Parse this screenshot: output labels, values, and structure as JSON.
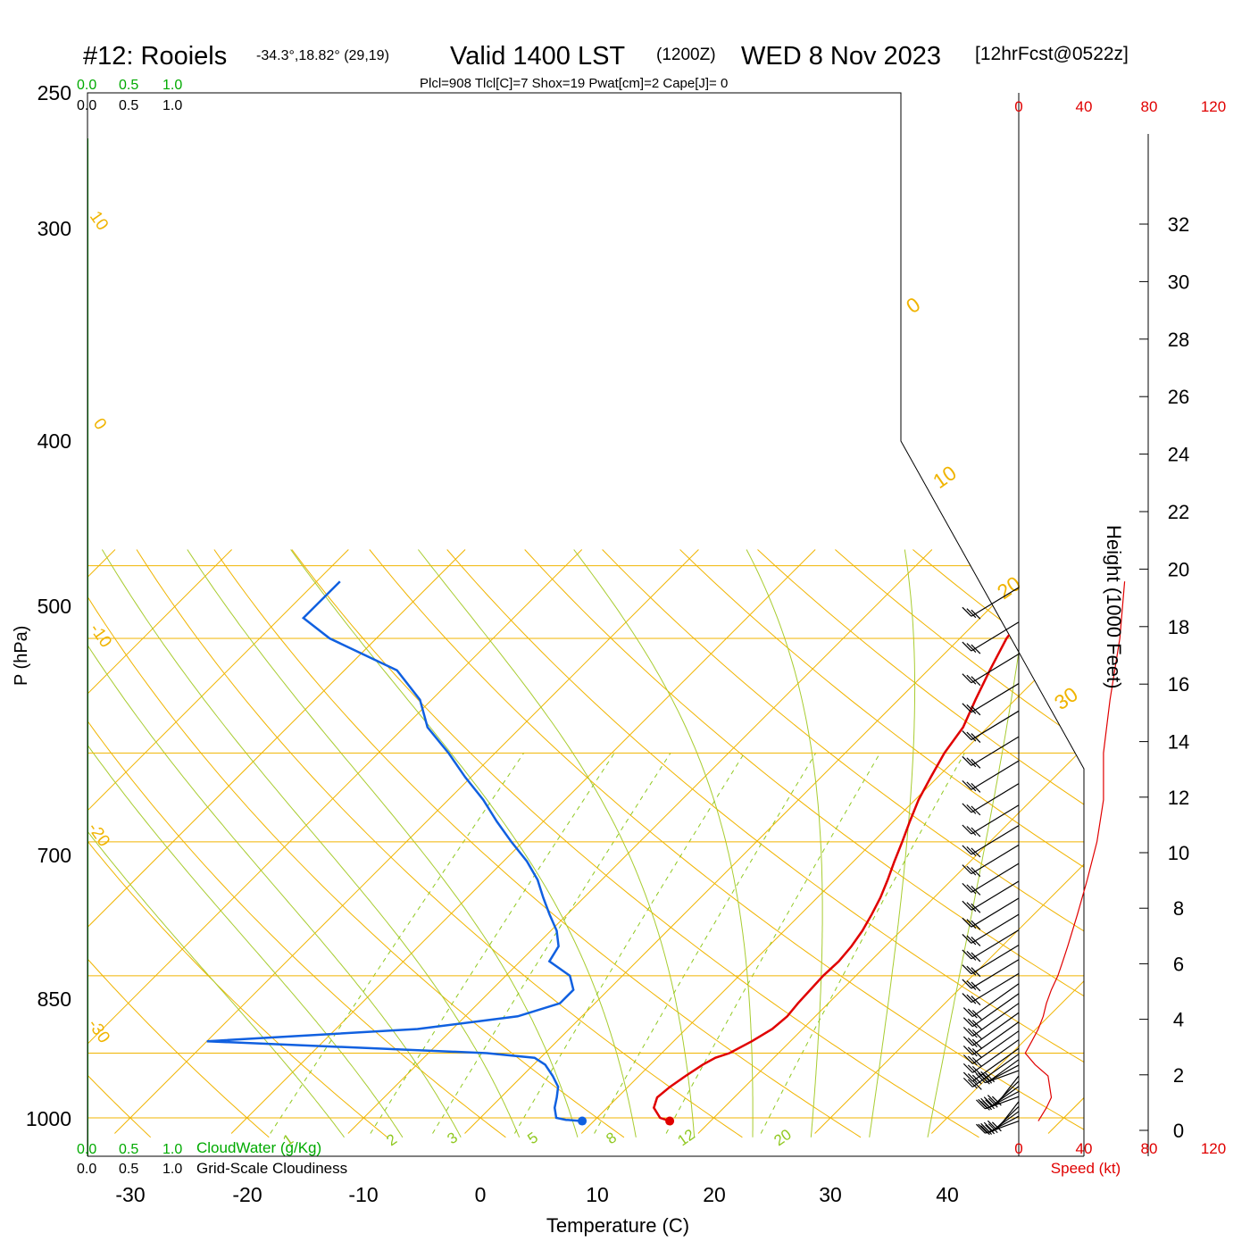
{
  "header": {
    "station": "#12: Rooiels",
    "coords": "-34.3°,18.82° (29,19)",
    "valid": "Valid 1400 LST",
    "zulu": "(1200Z)",
    "date": "WED 8 Nov 2023",
    "forecast": "[12hrFcst@0522z]",
    "indices": "Plcl=908 Tlcl[C]=7 Shox=19 Pwat[cm]=2 Cape[J]= 0"
  },
  "scales": {
    "cloud_top": [
      "0.0",
      "0.5",
      "1.0"
    ],
    "cloud_top2": [
      "0.0",
      "0.5",
      "1.0"
    ],
    "cloud_bottom": [
      "0.0",
      "0.5",
      "1.0"
    ],
    "cloud_bottom2": [
      "0.0",
      "0.5",
      "1.0"
    ],
    "cloudwater_label": "CloudWater (g/Kg)",
    "cloudiness_label": "Grid-Scale Cloudiness",
    "speed_top": [
      "0",
      "40",
      "80",
      "120"
    ],
    "speed_bottom": [
      "0",
      "40",
      "80",
      "120"
    ],
    "speed_label": "Speed (kt)",
    "height_label": "Height (1000 Feet)",
    "height_ticks": [
      "0",
      "2",
      "4",
      "6",
      "8",
      "10",
      "12",
      "14",
      "16",
      "18",
      "20",
      "22",
      "24",
      "26",
      "28",
      "30",
      "32"
    ]
  },
  "colors": {
    "temperature": "#e00000",
    "dewpoint": "#1060e0",
    "isotherm": "#f0b400",
    "adiabat": "#a8cc30",
    "mixing_ratio": "#90c820",
    "cloud_axis": "#00aa00",
    "indices": "#a0004a",
    "speed": "#e00000"
  },
  "chart_data": {
    "type": "line",
    "title": "#12: Rooiels Valid 1400 LST (1200Z) WED 8 Nov 2023",
    "xlabel": "Temperature (C)",
    "ylabel": "P (hPa)",
    "y_scale": "log, inverted",
    "xlim": [
      -35,
      45
    ],
    "ylim": [
      1040,
      250
    ],
    "x_ticks": [
      "-30",
      "-20",
      "-10",
      "0",
      "10",
      "20",
      "30",
      "40"
    ],
    "y_ticks": [
      "250",
      "300",
      "400",
      "500",
      "700",
      "850",
      "1000"
    ],
    "isotherm_labels": [
      "10",
      "0",
      "-10",
      "-20",
      "-30",
      "0",
      "10",
      "20",
      "30"
    ],
    "mixing_ratio_labels": [
      "1",
      "2",
      "3",
      "5",
      "8",
      "12",
      "20"
    ],
    "series": [
      {
        "name": "Temperature",
        "points": [
          [
            1008,
            16.5
          ],
          [
            1000,
            15.4
          ],
          [
            975,
            14.0
          ],
          [
            950,
            13.4
          ],
          [
            925,
            13.6
          ],
          [
            900,
            14.0
          ],
          [
            875,
            14.5
          ],
          [
            860,
            15.0
          ],
          [
            850,
            15.8
          ],
          [
            825,
            16.7
          ],
          [
            800,
            17.4
          ],
          [
            775,
            17.6
          ],
          [
            750,
            17.4
          ],
          [
            725,
            17.3
          ],
          [
            700,
            17.2
          ],
          [
            675,
            17.3
          ],
          [
            650,
            17.1
          ],
          [
            625,
            16.7
          ],
          [
            600,
            16.1
          ],
          [
            575,
            15.4
          ],
          [
            550,
            14.5
          ],
          [
            525,
            13.5
          ],
          [
            500,
            12.5
          ],
          [
            475,
            11.4
          ],
          [
            450,
            10.3
          ],
          [
            425,
            9.4
          ],
          [
            400,
            8.5
          ],
          [
            375,
            7.9
          ],
          [
            350,
            6.6
          ],
          [
            325,
            5.3
          ],
          [
            300,
            4.0
          ],
          [
            275,
            3.3
          ],
          [
            260,
            3.0
          ]
        ]
      },
      {
        "name": "Dewpoint",
        "points": [
          [
            1008,
            9.0
          ],
          [
            1005,
            7.5
          ],
          [
            1000,
            6.5
          ],
          [
            975,
            5.5
          ],
          [
            950,
            4.8
          ],
          [
            925,
            4.0
          ],
          [
            900,
            2.6
          ],
          [
            875,
            1.0
          ],
          [
            860,
            -0.5
          ],
          [
            850,
            -5.0
          ],
          [
            825,
            -30.0
          ],
          [
            800,
            -13.0
          ],
          [
            775,
            -5.5
          ],
          [
            750,
            -3.0
          ],
          [
            725,
            -3.0
          ],
          [
            700,
            -4.5
          ],
          [
            675,
            -7.5
          ],
          [
            650,
            -8.0
          ],
          [
            625,
            -9.5
          ],
          [
            600,
            -11.5
          ],
          [
            575,
            -13.5
          ],
          [
            550,
            -15.5
          ],
          [
            525,
            -18.0
          ],
          [
            500,
            -21.0
          ],
          [
            475,
            -24.0
          ],
          [
            450,
            -27.0
          ],
          [
            425,
            -30.5
          ],
          [
            400,
            -34.0
          ],
          [
            375,
            -38.0
          ],
          [
            350,
            -41.0
          ],
          [
            325,
            -45.5
          ],
          [
            300,
            -54.0
          ],
          [
            285,
            -58.0
          ],
          [
            260,
            -58.0
          ]
        ]
      },
      {
        "name": "Wind speed (kt)",
        "points": [
          [
            1008,
            12
          ],
          [
            975,
            17
          ],
          [
            950,
            20
          ],
          [
            900,
            18
          ],
          [
            875,
            10
          ],
          [
            850,
            4
          ],
          [
            825,
            8
          ],
          [
            800,
            12
          ],
          [
            775,
            15
          ],
          [
            750,
            17
          ],
          [
            725,
            20
          ],
          [
            700,
            24
          ],
          [
            675,
            27
          ],
          [
            650,
            30
          ],
          [
            600,
            36
          ],
          [
            550,
            42
          ],
          [
            500,
            48
          ],
          [
            450,
            52
          ],
          [
            400,
            52
          ],
          [
            350,
            56
          ],
          [
            300,
            62
          ],
          [
            260,
            65
          ]
        ]
      }
    ],
    "wind_barbs": "plotted on the right from about 1008 to 260 hPa"
  }
}
